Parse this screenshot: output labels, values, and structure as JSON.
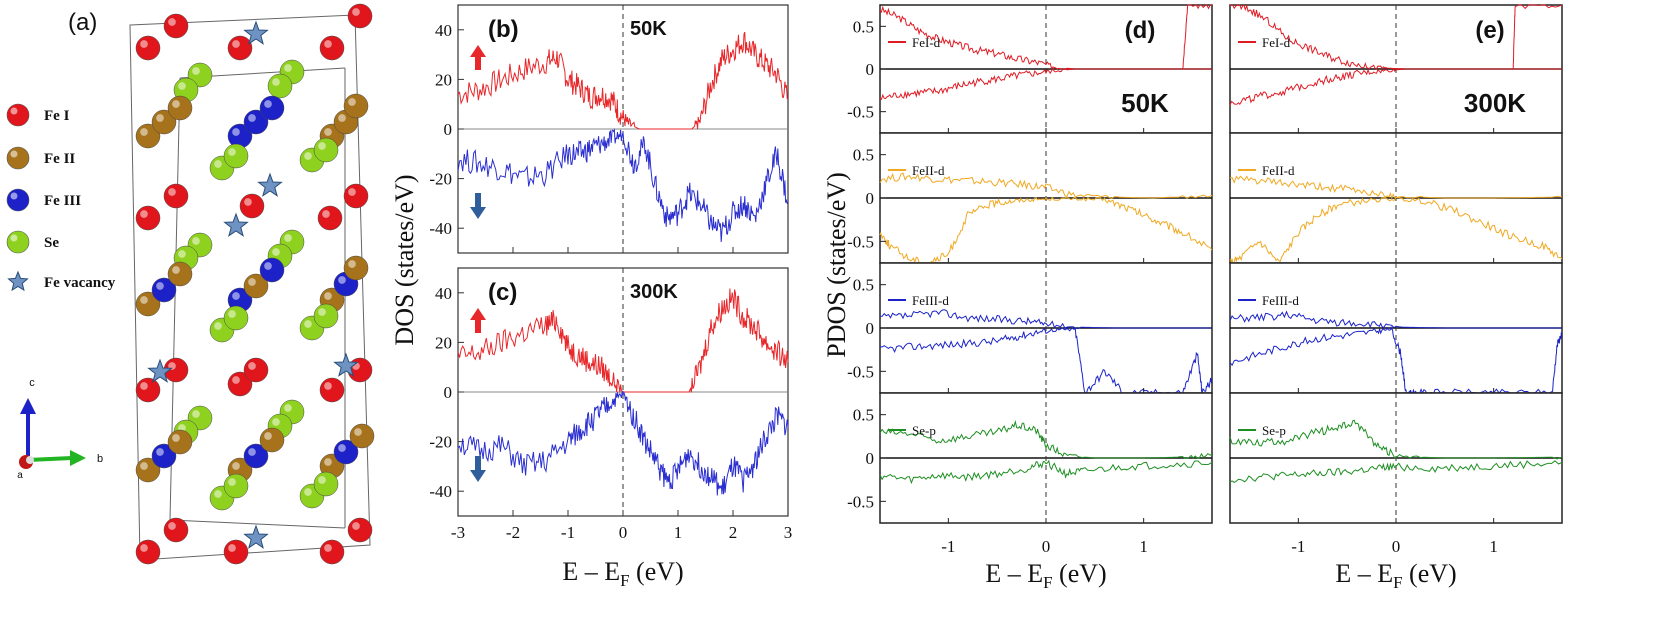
{
  "crystal": {
    "panel_label": "(a)",
    "legend": [
      {
        "label": "Fe I",
        "color": "#e0161c"
      },
      {
        "label": "Fe II",
        "color": "#a6731c"
      },
      {
        "label": "Fe III",
        "color": "#1c22c8"
      },
      {
        "label": "Se",
        "color": "#8fd11f"
      },
      {
        "label": "Fe vacancy",
        "color": "#6e93c2",
        "shape": "star"
      }
    ],
    "axes": {
      "c": "c",
      "b": "b",
      "a": "a"
    }
  },
  "colors": {
    "up": "#e8272a",
    "down": "#2b2fd0",
    "fe1": "#e01b24",
    "fe2": "#f0a922",
    "fe3": "#1b23c9",
    "se": "#1e8f22",
    "arrow_up": "#e8272a",
    "arrow_down": "#2e5f9c"
  },
  "chart_data": [
    {
      "type": "line",
      "panel": "(b)",
      "annotation": "50K",
      "xlim": [
        -3,
        3
      ],
      "ylim": [
        -50,
        50
      ],
      "xticks": [
        "-3",
        "-2",
        "-1",
        "0",
        "1",
        "2",
        "3"
      ],
      "yticks": [
        "40",
        "20",
        "0",
        "-20",
        "-40"
      ],
      "xlabel": "E – E_F (eV)",
      "ylabel": "DOS (states/eV)",
      "series": [
        {
          "spin": "up",
          "x": [
            -3,
            -2.6,
            -2.2,
            -1.8,
            -1.4,
            -1.2,
            -1,
            -0.8,
            -0.6,
            -0.4,
            -0.2,
            -0.05,
            0.1,
            0.3,
            0.9,
            1.25,
            1.4,
            1.6,
            1.8,
            2,
            2.2,
            2.4,
            2.6,
            2.8,
            3
          ],
          "y": [
            14,
            16,
            20,
            24,
            27,
            29,
            20,
            17,
            13,
            14,
            12,
            6,
            2,
            0,
            0,
            0,
            3,
            18,
            28,
            32,
            36,
            30,
            26,
            22,
            12
          ]
        },
        {
          "spin": "down",
          "x": [
            -3,
            -2.6,
            -2.2,
            -1.8,
            -1.4,
            -1,
            -0.8,
            -0.6,
            -0.4,
            -0.2,
            0,
            0.2,
            0.4,
            0.6,
            0.8,
            1,
            1.2,
            1.4,
            1.6,
            1.8,
            2,
            2.2,
            2.4,
            2.6,
            2.8,
            3
          ],
          "y": [
            -12,
            -14,
            -16,
            -20,
            -18,
            -10,
            -10,
            -8,
            -6,
            -4,
            -2,
            -14,
            -6,
            -24,
            -36,
            -34,
            -26,
            -30,
            -38,
            -42,
            -34,
            -30,
            -36,
            -22,
            -10,
            -30
          ]
        }
      ]
    },
    {
      "type": "line",
      "panel": "(c)",
      "annotation": "300K",
      "xlim": [
        -3,
        3
      ],
      "ylim": [
        -50,
        50
      ],
      "xticks": [
        "-3",
        "-2",
        "-1",
        "0",
        "1",
        "2",
        "3"
      ],
      "yticks": [
        "40",
        "20",
        "0",
        "-20",
        "-40"
      ],
      "xlabel": "E – E_F (eV)",
      "ylabel": "DOS (states/eV)",
      "series": [
        {
          "spin": "up",
          "x": [
            -3,
            -2.6,
            -2.2,
            -1.8,
            -1.4,
            -1.2,
            -1,
            -0.8,
            -0.6,
            -0.4,
            -0.2,
            0,
            0.3,
            0.8,
            1.2,
            1.4,
            1.6,
            1.8,
            2,
            2.2,
            2.4,
            2.6,
            2.8,
            3
          ],
          "y": [
            14,
            16,
            20,
            24,
            27,
            29,
            18,
            15,
            12,
            10,
            5,
            0,
            0,
            0,
            0,
            10,
            26,
            34,
            38,
            30,
            26,
            20,
            16,
            12
          ]
        },
        {
          "spin": "down",
          "x": [
            -3,
            -2.6,
            -2.2,
            -1.8,
            -1.4,
            -1,
            -0.8,
            -0.6,
            -0.4,
            -0.2,
            0,
            0.2,
            0.4,
            0.6,
            0.8,
            1,
            1.2,
            1.4,
            1.6,
            1.8,
            2,
            2.2,
            2.4,
            2.6,
            2.8,
            3
          ],
          "y": [
            -20,
            -24,
            -22,
            -30,
            -28,
            -20,
            -16,
            -12,
            -8,
            -4,
            -1,
            -10,
            -20,
            -28,
            -36,
            -32,
            -24,
            -30,
            -34,
            -40,
            -30,
            -36,
            -28,
            -18,
            -10,
            -14
          ]
        }
      ]
    },
    {
      "type": "line",
      "panel": "(d)",
      "annotation": "50K",
      "xlim": [
        -1.7,
        1.7
      ],
      "xticks": [
        "-1",
        "0",
        "1"
      ],
      "xlabel": "E – E_F (eV)",
      "ylabel": "PDOS (states/eV)",
      "subplots": [
        {
          "legend": "FeI-d",
          "color_key": "fe1",
          "ylim": [
            -0.75,
            0.75
          ],
          "yticks": [
            "0.5",
            "0",
            "-0.5"
          ],
          "up": {
            "x": [
              -1.7,
              -1.5,
              -1.3,
              -1.1,
              -0.9,
              -0.7,
              -0.5,
              -0.3,
              -0.1,
              0.1,
              0.3,
              0.6,
              1,
              1.3,
              1.4,
              1.45,
              1.7
            ],
            "y": [
              0.7,
              0.6,
              0.45,
              0.35,
              0.28,
              0.22,
              0.18,
              0.12,
              0.08,
              0.02,
              0,
              0,
              0,
              0,
              0,
              0.75,
              0.75
            ]
          },
          "down": {
            "x": [
              -1.7,
              -1.5,
              -1.3,
              -1.1,
              -0.9,
              -0.7,
              -0.5,
              -0.3,
              -0.1,
              0.1,
              0.3,
              0.6,
              1,
              1.4,
              1.7
            ],
            "y": [
              -0.35,
              -0.3,
              -0.28,
              -0.26,
              -0.2,
              -0.15,
              -0.12,
              -0.08,
              -0.05,
              -0.02,
              0,
              0,
              0,
              0,
              0
            ]
          }
        },
        {
          "legend": "FeII-d",
          "color_key": "fe2",
          "ylim": [
            -0.75,
            0.75
          ],
          "yticks": [
            "0.5",
            "0",
            "-0.5"
          ],
          "up": {
            "x": [
              -1.7,
              -1.4,
              -1.1,
              -0.8,
              -0.5,
              -0.2,
              0,
              0.3,
              0.7,
              1.1,
              1.7
            ],
            "y": [
              0.22,
              0.25,
              0.22,
              0.2,
              0.18,
              0.15,
              0.12,
              0.03,
              0.01,
              0,
              0.03
            ]
          },
          "down": {
            "x": [
              -1.7,
              -1.6,
              -1.4,
              -1.2,
              -1,
              -0.8,
              -0.6,
              -0.4,
              -0.2,
              0,
              0.3,
              0.6,
              0.8,
              1,
              1.2,
              1.4,
              1.7
            ],
            "y": [
              -0.4,
              -0.55,
              -0.7,
              -0.75,
              -0.65,
              -0.2,
              -0.08,
              -0.04,
              -0.02,
              -0.01,
              -0.01,
              -0.02,
              -0.1,
              -0.2,
              -0.3,
              -0.4,
              -0.6
            ]
          }
        },
        {
          "legend": "FeIII-d",
          "color_key": "fe3",
          "ylim": [
            -0.75,
            0.75
          ],
          "yticks": [
            "0.5",
            "0",
            "-0.5"
          ],
          "up": {
            "x": [
              -1.7,
              -1.4,
              -1.1,
              -0.8,
              -0.5,
              -0.2,
              0,
              0.3,
              0.7,
              1.1,
              1.7
            ],
            "y": [
              0.12,
              0.14,
              0.18,
              0.12,
              0.1,
              0.08,
              0.05,
              0.01,
              0,
              0,
              0
            ]
          },
          "down": {
            "x": [
              -1.7,
              -1.4,
              -1.1,
              -0.8,
              -0.5,
              -0.3,
              -0.1,
              0.1,
              0.3,
              0.4,
              0.6,
              0.8,
              1.1,
              1.4,
              1.55,
              1.6,
              1.7
            ],
            "y": [
              -0.25,
              -0.22,
              -0.2,
              -0.18,
              -0.15,
              -0.1,
              -0.05,
              -0.02,
              -0.02,
              -0.75,
              -0.5,
              -0.75,
              -0.75,
              -0.75,
              -0.3,
              -0.75,
              -0.6
            ]
          }
        },
        {
          "legend": "Se-p",
          "color_key": "se",
          "ylim": [
            -0.75,
            0.75
          ],
          "yticks": [
            "0.5",
            "0",
            "-0.5"
          ],
          "up": {
            "x": [
              -1.7,
              -1.4,
              -1.1,
              -0.8,
              -0.5,
              -0.3,
              -0.1,
              0,
              0.2,
              0.5,
              1,
              1.4,
              1.7
            ],
            "y": [
              0.3,
              0.28,
              0.2,
              0.25,
              0.3,
              0.38,
              0.32,
              0.15,
              0.03,
              0,
              0,
              0.01,
              0.03
            ]
          },
          "down": {
            "x": [
              -1.7,
              -1.4,
              -1.1,
              -0.8,
              -0.5,
              -0.2,
              0,
              0.2,
              0.4,
              0.8,
              1.2,
              1.7
            ],
            "y": [
              -0.2,
              -0.25,
              -0.2,
              -0.22,
              -0.18,
              -0.12,
              -0.05,
              -0.18,
              -0.15,
              -0.1,
              -0.08,
              -0.05
            ]
          }
        }
      ]
    },
    {
      "type": "line",
      "panel": "(e)",
      "annotation": "300K",
      "xlim": [
        -1.7,
        1.7
      ],
      "xticks": [
        "-1",
        "0",
        "1"
      ],
      "xlabel": "E – E_F (eV)",
      "ylabel": "",
      "subplots": [
        {
          "legend": "FeI-d",
          "color_key": "fe1",
          "ylim": [
            -0.75,
            0.75
          ],
          "yticks": [],
          "up": {
            "x": [
              -1.7,
              -1.5,
              -1.3,
              -1.1,
              -0.9,
              -0.7,
              -0.5,
              -0.3,
              -0.1,
              0.1,
              0.6,
              1,
              1.2,
              1.22,
              1.7
            ],
            "y": [
              0.75,
              0.7,
              0.55,
              0.35,
              0.25,
              0.15,
              0.08,
              0.03,
              0.01,
              0,
              0,
              0,
              0,
              0.75,
              0.75
            ]
          },
          "down": {
            "x": [
              -1.7,
              -1.5,
              -1.3,
              -1.1,
              -0.9,
              -0.7,
              -0.5,
              -0.3,
              -0.1,
              0.1,
              1,
              1.7
            ],
            "y": [
              -0.4,
              -0.35,
              -0.3,
              -0.25,
              -0.18,
              -0.12,
              -0.08,
              -0.04,
              -0.02,
              0,
              0,
              0
            ]
          }
        },
        {
          "legend": "FeII-d",
          "color_key": "fe2",
          "ylim": [
            -0.75,
            0.75
          ],
          "yticks": [],
          "up": {
            "x": [
              -1.7,
              -1.4,
              -1.1,
              -0.8,
              -0.5,
              -0.2,
              0,
              0.5,
              1,
              1.7
            ],
            "y": [
              0.22,
              0.2,
              0.16,
              0.13,
              0.1,
              0.05,
              0.02,
              0,
              0,
              0.01
            ]
          },
          "down": {
            "x": [
              -1.7,
              -1.6,
              -1.4,
              -1.2,
              -1,
              -0.8,
              -0.6,
              -0.3,
              0,
              0.3,
              0.6,
              0.9,
              1.2,
              1.5,
              1.7
            ],
            "y": [
              -0.75,
              -0.7,
              -0.5,
              -0.75,
              -0.4,
              -0.2,
              -0.08,
              -0.03,
              -0.01,
              -0.04,
              -0.15,
              -0.3,
              -0.45,
              -0.55,
              -0.7
            ]
          }
        },
        {
          "legend": "FeIII-d",
          "color_key": "fe3",
          "ylim": [
            -0.75,
            0.75
          ],
          "yticks": [],
          "up": {
            "x": [
              -1.7,
              -1.4,
              -1.1,
              -0.8,
              -0.5,
              -0.2,
              0,
              0.5,
              1,
              1.7
            ],
            "y": [
              0.1,
              0.12,
              0.15,
              0.08,
              0.06,
              0.04,
              0.01,
              0,
              0,
              0
            ]
          },
          "down": {
            "x": [
              -1.7,
              -1.4,
              -1.1,
              -0.8,
              -0.5,
              -0.2,
              -0.05,
              0.05,
              0.1,
              0.2,
              0.4,
              0.8,
              1.2,
              1.6,
              1.65,
              1.7
            ],
            "y": [
              -0.4,
              -0.3,
              -0.2,
              -0.12,
              -0.08,
              -0.04,
              -0.01,
              -0.3,
              -0.75,
              -0.75,
              -0.75,
              -0.75,
              -0.75,
              -0.75,
              -0.2,
              -0.05
            ]
          }
        },
        {
          "legend": "Se-p",
          "color_key": "se",
          "ylim": [
            -0.75,
            0.75
          ],
          "yticks": [],
          "up": {
            "x": [
              -1.7,
              -1.4,
              -1.1,
              -0.8,
              -0.6,
              -0.4,
              -0.2,
              0,
              0.5,
              1,
              1.7
            ],
            "y": [
              0.2,
              0.18,
              0.2,
              0.3,
              0.35,
              0.4,
              0.15,
              0.02,
              0,
              0,
              0.01
            ]
          },
          "down": {
            "x": [
              -1.7,
              -1.4,
              -1.1,
              -0.8,
              -0.5,
              -0.2,
              0,
              0.4,
              0.8,
              1.2,
              1.7
            ],
            "y": [
              -0.25,
              -0.22,
              -0.2,
              -0.18,
              -0.16,
              -0.12,
              -0.1,
              -0.12,
              -0.1,
              -0.08,
              -0.05
            ]
          }
        }
      ]
    }
  ]
}
